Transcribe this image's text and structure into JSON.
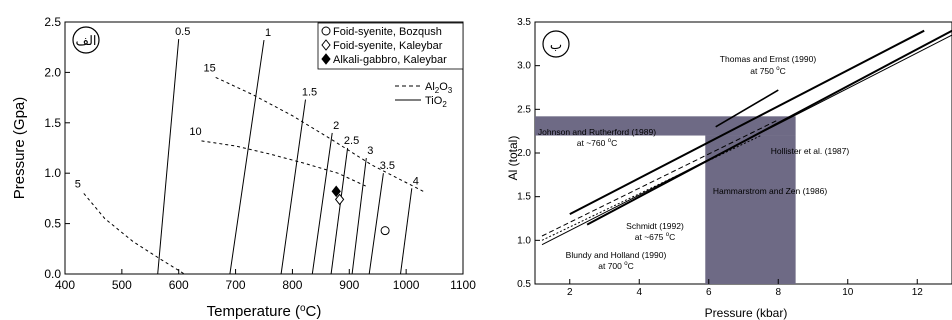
{
  "chart_data": [
    {
      "type": "line",
      "panel_label": "الف",
      "xlabel": "Temperature (ºC)",
      "ylabel": "Pressure (Gpa)",
      "xlim": [
        400,
        1100
      ],
      "ylim": [
        0.0,
        2.5
      ],
      "xticks": [
        "400",
        "500",
        "600",
        "700",
        "800",
        "900",
        "1000",
        "1100"
      ],
      "yticks": [
        "0.0",
        "0.5",
        "1.0",
        "1.5",
        "2.0",
        "2.5"
      ],
      "legend_points": [
        {
          "label": "Foid-syenite, Bozqush",
          "marker": "open-circle"
        },
        {
          "label": "Foid-syenite, Kaleybar",
          "marker": "open-diamond"
        },
        {
          "label": "Alkali-gabbro, Kaleybar",
          "marker": "filled-diamond"
        }
      ],
      "legend_lines": [
        {
          "label": "Al2O3",
          "style": "dashed"
        },
        {
          "label": "TiO2",
          "style": "solid"
        }
      ],
      "isopleths_al2o3": [
        {
          "label": "5",
          "points": [
            [
              433,
              0.8
            ],
            [
              470,
              0.55
            ],
            [
              520,
              0.32
            ],
            [
              570,
              0.14
            ],
            [
              610,
              0.0
            ]
          ]
        },
        {
          "label": "10",
          "points": [
            [
              640,
              1.32
            ],
            [
              700,
              1.27
            ],
            [
              760,
              1.19
            ],
            [
              820,
              1.1
            ],
            [
              880,
              1.0
            ],
            [
              930,
              0.87
            ]
          ]
        },
        {
          "label": "15",
          "points": [
            [
              665,
              1.95
            ],
            [
              730,
              1.78
            ],
            [
              800,
              1.57
            ],
            [
              870,
              1.33
            ],
            [
              940,
              1.08
            ],
            [
              985,
              0.95
            ],
            [
              1030,
              0.82
            ]
          ]
        }
      ],
      "isopleths_tio2": [
        {
          "label": "0.5",
          "points": [
            [
              563,
              0.0
            ],
            [
              600,
              2.33
            ]
          ]
        },
        {
          "label": "1",
          "points": [
            [
              690,
              0.0
            ],
            [
              750,
              2.32
            ]
          ]
        },
        {
          "label": "1.5",
          "points": [
            [
              780,
              0.0
            ],
            [
              823,
              1.73
            ]
          ]
        },
        {
          "label": "2",
          "points": [
            [
              835,
              0.0
            ],
            [
              870,
              1.4
            ]
          ]
        },
        {
          "label": "2.5",
          "points": [
            [
              868,
              0.0
            ],
            [
              897,
              1.25
            ]
          ]
        },
        {
          "label": "3",
          "points": [
            [
              905,
              0.0
            ],
            [
              930,
              1.15
            ]
          ]
        },
        {
          "label": "3.5",
          "points": [
            [
              935,
              0.0
            ],
            [
              960,
              1.0
            ]
          ]
        },
        {
          "label": "4",
          "points": [
            [
              990,
              0.0
            ],
            [
              1010,
              0.85
            ]
          ]
        }
      ],
      "samples": [
        {
          "marker": "open-circle",
          "x": 963,
          "y": 0.43
        },
        {
          "marker": "open-diamond",
          "x": 883,
          "y": 0.74
        },
        {
          "marker": "filled-diamond",
          "x": 877,
          "y": 0.82
        }
      ]
    },
    {
      "type": "line",
      "panel_label": "ب",
      "xlabel": "Pressure (kbar)",
      "ylabel": "Al (total)",
      "xlim": [
        1,
        13
      ],
      "ylim": [
        0.5,
        3.5
      ],
      "xticks": [
        "2",
        "4",
        "6",
        "8",
        "10",
        "12"
      ],
      "yticks": [
        "0.5",
        "1.0",
        "1.5",
        "2.0",
        "2.5",
        "3.0",
        "3.5"
      ],
      "shaded_horizontal": [
        2.2,
        2.42
      ],
      "shaded_vertical": [
        5.9,
        8.5
      ],
      "calibrations": [
        {
          "label": "Thomas and Ernst (1990)",
          "sublabel": "at 750 ºC",
          "style": "solid-thick",
          "points": [
            [
              2,
              1.3
            ],
            [
              12.2,
              3.4
            ]
          ]
        },
        {
          "label": "Johnson and Rutherford (1989)",
          "sublabel": "at ~760 ºC",
          "style": "solid",
          "points": [
            [
              6.2,
              2.3
            ],
            [
              8,
              2.72
            ]
          ]
        },
        {
          "label": "Hollister et al. (1987)",
          "sublabel": "",
          "style": "solid-thick",
          "points": [
            [
              2.5,
              1.18
            ],
            [
              13,
              3.4
            ]
          ]
        },
        {
          "label": "Hammarstrom and Zen (1986)",
          "sublabel": "",
          "style": "dashed",
          "points": [
            [
              1.2,
              1.05
            ],
            [
              8,
              2.38
            ]
          ]
        },
        {
          "label": "Schmidt (1992)",
          "sublabel": "at ~675 ºC",
          "style": "dotted",
          "points": [
            [
              1.2,
              1.0
            ],
            [
              7.5,
              2.2
            ]
          ]
        },
        {
          "label": "Blundy and Holland (1990)",
          "sublabel": "at 700 ºC",
          "style": "solid-thin",
          "points": [
            [
              1.2,
              0.95
            ],
            [
              13,
              3.35
            ]
          ]
        }
      ]
    }
  ]
}
